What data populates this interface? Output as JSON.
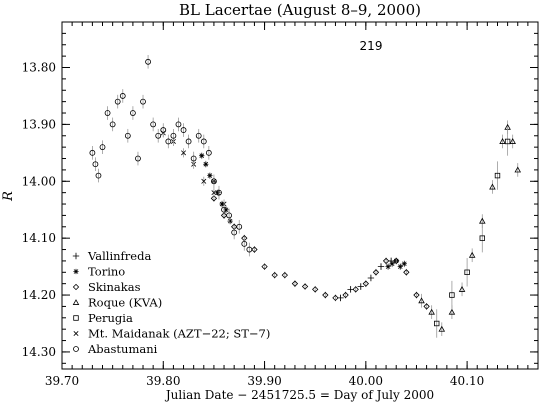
{
  "chart_data": {
    "type": "scatter",
    "title": "BL Lacertae    (August 8–9, 2000)",
    "panel_label": "219",
    "xlabel": "Julian Date − 2451725.5 = Day of July 2000",
    "ylabel": "R",
    "xlim": [
      39.7,
      40.17
    ],
    "ylim": [
      13.72,
      14.33
    ],
    "y_inverted": true,
    "grid": false,
    "legend_position": "bottom-left",
    "xticks": [
      {
        "v": 39.7,
        "label": "39.70"
      },
      {
        "v": 39.8,
        "label": "39.80"
      },
      {
        "v": 39.9,
        "label": "39.90"
      },
      {
        "v": 40.0,
        "label": "40.00"
      },
      {
        "v": 40.1,
        "label": "40.10"
      }
    ],
    "yticks": [
      {
        "v": 13.8,
        "label": "13.80"
      },
      {
        "v": 13.9,
        "label": "13.90"
      },
      {
        "v": 14.0,
        "label": "14.00"
      },
      {
        "v": 14.1,
        "label": "14.10"
      },
      {
        "v": 14.2,
        "label": "14.20"
      },
      {
        "v": 14.3,
        "label": "14.30"
      }
    ],
    "series": [
      {
        "name": "Vallinfreda",
        "marker": "plus",
        "x": [
          39.975,
          39.985,
          39.995,
          40.005,
          40.015,
          40.025
        ],
        "y": [
          14.205,
          14.19,
          14.185,
          14.17,
          14.15,
          14.14
        ],
        "err": [
          0.006,
          0.006,
          0.006,
          0.006,
          0.006,
          0.006
        ]
      },
      {
        "name": "Torino",
        "marker": "asterisk",
        "x": [
          39.838,
          39.842,
          39.846,
          39.85,
          39.854,
          39.858,
          39.862,
          39.866,
          40.022,
          40.026,
          40.03,
          40.034,
          40.038
        ],
        "y": [
          13.955,
          13.97,
          13.99,
          14.0,
          14.02,
          14.04,
          14.05,
          14.07,
          14.15,
          14.145,
          14.14,
          14.15,
          14.145
        ],
        "err": [
          0.006,
          0.006,
          0.006,
          0.006,
          0.006,
          0.006,
          0.006,
          0.006,
          0.006,
          0.006,
          0.006,
          0.006,
          0.006
        ]
      },
      {
        "name": "Skinakas",
        "marker": "diamond",
        "x": [
          39.85,
          39.86,
          39.87,
          39.88,
          39.89,
          39.9,
          39.91,
          39.92,
          39.93,
          39.94,
          39.95,
          39.96,
          39.97,
          39.98,
          39.99,
          40.0,
          40.01,
          40.02,
          40.03,
          40.04,
          40.05,
          40.06
        ],
        "y": [
          14.03,
          14.06,
          14.08,
          14.1,
          14.12,
          14.15,
          14.165,
          14.165,
          14.18,
          14.185,
          14.19,
          14.2,
          14.205,
          14.2,
          14.19,
          14.18,
          14.16,
          14.14,
          14.14,
          14.16,
          14.2,
          14.22
        ],
        "err": [
          0.006,
          0.006,
          0.006,
          0.006,
          0.006,
          0.006,
          0.006,
          0.006,
          0.006,
          0.006,
          0.006,
          0.006,
          0.006,
          0.006,
          0.006,
          0.006,
          0.006,
          0.006,
          0.006,
          0.006,
          0.006,
          0.006
        ]
      },
      {
        "name": "Roque (KVA)",
        "marker": "triangle",
        "x": [
          40.055,
          40.065,
          40.075,
          40.085,
          40.095,
          40.105,
          40.115,
          40.125,
          40.135,
          40.14,
          40.145,
          40.15
        ],
        "y": [
          14.21,
          14.23,
          14.26,
          14.23,
          14.19,
          14.13,
          14.07,
          14.01,
          13.93,
          13.905,
          13.93,
          13.98
        ],
        "err": [
          0.012,
          0.012,
          0.012,
          0.012,
          0.012,
          0.012,
          0.012,
          0.012,
          0.012,
          0.012,
          0.012,
          0.012
        ]
      },
      {
        "name": "Perugia",
        "marker": "square",
        "x": [
          40.07,
          40.085,
          40.1,
          40.115,
          40.13,
          40.14
        ],
        "y": [
          14.25,
          14.2,
          14.16,
          14.1,
          13.99,
          13.93
        ],
        "err": [
          0.025,
          0.025,
          0.025,
          0.025,
          0.025,
          0.025
        ]
      },
      {
        "name": "Mt. Maidanak (AZT−22; ST−7)",
        "marker": "cross",
        "x": [
          39.8,
          39.81,
          39.82,
          39.83,
          39.84,
          39.85,
          39.86
        ],
        "y": [
          13.915,
          13.93,
          13.95,
          13.97,
          14.0,
          14.02,
          14.04
        ],
        "err": [
          0.008,
          0.008,
          0.008,
          0.008,
          0.008,
          0.008,
          0.008
        ]
      },
      {
        "name": "Abastumani",
        "marker": "circle",
        "x": [
          39.73,
          39.733,
          39.736,
          39.74,
          39.745,
          39.75,
          39.755,
          39.76,
          39.765,
          39.77,
          39.775,
          39.78,
          39.785,
          39.79,
          39.795,
          39.8,
          39.805,
          39.81,
          39.815,
          39.82,
          39.825,
          39.83,
          39.835,
          39.84,
          39.845,
          39.85,
          39.855,
          39.86,
          39.865,
          39.87,
          39.875,
          39.88,
          39.885
        ],
        "y": [
          13.95,
          13.97,
          13.99,
          13.94,
          13.88,
          13.9,
          13.86,
          13.85,
          13.92,
          13.88,
          13.96,
          13.86,
          13.79,
          13.9,
          13.92,
          13.91,
          13.93,
          13.92,
          13.9,
          13.91,
          13.93,
          13.96,
          13.92,
          13.93,
          13.95,
          14.0,
          14.02,
          14.05,
          14.06,
          14.09,
          14.08,
          14.11,
          14.12
        ],
        "err": [
          0.012,
          0.012,
          0.012,
          0.012,
          0.012,
          0.012,
          0.012,
          0.012,
          0.012,
          0.012,
          0.012,
          0.012,
          0.012,
          0.012,
          0.012,
          0.012,
          0.012,
          0.012,
          0.012,
          0.012,
          0.012,
          0.012,
          0.012,
          0.012,
          0.012,
          0.012,
          0.012,
          0.012,
          0.012,
          0.012,
          0.012,
          0.012,
          0.012
        ]
      }
    ]
  }
}
